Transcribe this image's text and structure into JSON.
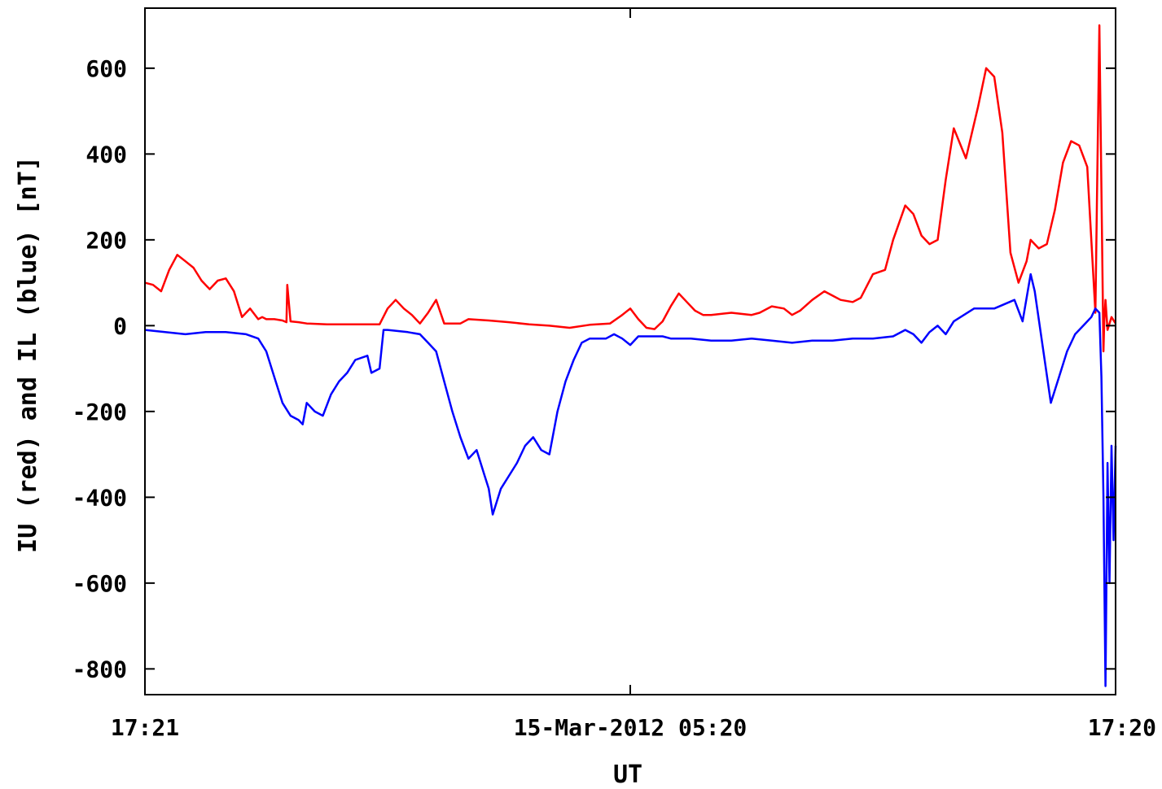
{
  "chart_data": {
    "type": "line",
    "xlabel": "UT",
    "ylabel": "IU (red) and IL (blue) [nT]",
    "x_tick_labels": [
      "17:21",
      "15-Mar-2012 05:20",
      "17:20"
    ],
    "x_range_hours": [
      0,
      24
    ],
    "ylim": [
      -860,
      740
    ],
    "y_ticks": [
      600,
      400,
      200,
      0,
      -200,
      -400,
      -600,
      -800
    ],
    "grid": false,
    "series": [
      {
        "label_word": "red",
        "color": "#ff0000",
        "t": [
          0,
          0.2,
          0.4,
          0.6,
          0.8,
          1.0,
          1.2,
          1.4,
          1.6,
          1.8,
          2.0,
          2.2,
          2.4,
          2.6,
          2.8,
          2.9,
          3.0,
          3.2,
          3.4,
          3.5,
          3.52,
          3.6,
          3.8,
          4.0,
          4.5,
          5.0,
          5.5,
          5.8,
          6.0,
          6.2,
          6.4,
          6.6,
          6.8,
          7.0,
          7.2,
          7.4,
          7.5,
          7.6,
          7.8,
          8.0,
          8.5,
          9.0,
          9.5,
          10.0,
          10.5,
          11.0,
          11.5,
          11.8,
          12.0,
          12.2,
          12.4,
          12.6,
          12.8,
          13.0,
          13.2,
          13.4,
          13.6,
          13.8,
          14.0,
          14.5,
          15.0,
          15.2,
          15.5,
          15.8,
          16.0,
          16.2,
          16.5,
          16.8,
          17.0,
          17.2,
          17.5,
          17.7,
          18.0,
          18.3,
          18.5,
          18.8,
          19.0,
          19.2,
          19.4,
          19.6,
          19.8,
          20.0,
          20.3,
          20.6,
          20.8,
          21.0,
          21.2,
          21.4,
          21.6,
          21.8,
          21.9,
          22.1,
          22.3,
          22.5,
          22.7,
          22.9,
          23.1,
          23.3,
          23.5,
          23.6,
          23.7,
          23.72,
          23.75,
          23.8,
          23.9,
          24.0
        ],
        "values": [
          100,
          95,
          80,
          130,
          165,
          150,
          135,
          105,
          85,
          105,
          110,
          80,
          20,
          40,
          15,
          20,
          15,
          15,
          12,
          8,
          95,
          10,
          8,
          5,
          3,
          3,
          3,
          3,
          40,
          60,
          40,
          25,
          5,
          30,
          60,
          5,
          5,
          5,
          5,
          15,
          12,
          8,
          3,
          0,
          -5,
          2,
          5,
          25,
          40,
          15,
          -5,
          -8,
          10,
          45,
          75,
          55,
          35,
          25,
          25,
          30,
          25,
          30,
          45,
          40,
          25,
          35,
          60,
          80,
          70,
          60,
          55,
          65,
          120,
          130,
          200,
          280,
          260,
          210,
          190,
          200,
          340,
          460,
          390,
          510,
          600,
          580,
          450,
          170,
          100,
          150,
          200,
          180,
          190,
          270,
          380,
          430,
          420,
          370,
          30,
          700,
          -60,
          10,
          60,
          -10,
          20,
          5
        ]
      },
      {
        "label_word": "blue",
        "color": "#0000ff",
        "t": [
          0,
          0.5,
          1.0,
          1.5,
          2.0,
          2.5,
          2.8,
          3.0,
          3.2,
          3.4,
          3.6,
          3.8,
          3.9,
          4.0,
          4.2,
          4.4,
          4.6,
          4.8,
          5.0,
          5.2,
          5.5,
          5.6,
          5.8,
          5.9,
          6.0,
          6.5,
          6.8,
          7.0,
          7.2,
          7.4,
          7.6,
          7.8,
          8.0,
          8.2,
          8.4,
          8.5,
          8.6,
          8.8,
          9.0,
          9.2,
          9.4,
          9.6,
          9.8,
          10.0,
          10.2,
          10.4,
          10.6,
          10.8,
          11.0,
          11.2,
          11.4,
          11.6,
          11.8,
          12.0,
          12.2,
          12.4,
          12.6,
          12.8,
          13.0,
          13.5,
          14.0,
          14.5,
          15.0,
          15.5,
          16.0,
          16.5,
          17.0,
          17.5,
          18.0,
          18.5,
          18.8,
          19.0,
          19.2,
          19.4,
          19.6,
          19.8,
          20.0,
          20.5,
          21.0,
          21.5,
          21.7,
          21.9,
          22.0,
          22.2,
          22.4,
          22.6,
          22.8,
          23.0,
          23.2,
          23.4,
          23.5,
          23.6,
          23.65,
          23.7,
          23.75,
          23.8,
          23.85,
          23.9,
          23.95,
          24.0
        ],
        "values": [
          -10,
          -15,
          -20,
          -15,
          -15,
          -20,
          -30,
          -60,
          -120,
          -180,
          -210,
          -220,
          -230,
          -180,
          -200,
          -210,
          -160,
          -130,
          -110,
          -80,
          -70,
          -110,
          -100,
          -10,
          -10,
          -15,
          -20,
          -40,
          -60,
          -130,
          -200,
          -260,
          -310,
          -290,
          -350,
          -380,
          -440,
          -380,
          -350,
          -320,
          -280,
          -260,
          -290,
          -300,
          -200,
          -130,
          -80,
          -40,
          -30,
          -30,
          -30,
          -20,
          -30,
          -45,
          -25,
          -25,
          -25,
          -25,
          -30,
          -30,
          -35,
          -35,
          -30,
          -35,
          -40,
          -35,
          -35,
          -30,
          -30,
          -25,
          -10,
          -20,
          -40,
          -15,
          0,
          -20,
          10,
          40,
          40,
          60,
          10,
          120,
          80,
          -50,
          -180,
          -120,
          -60,
          -20,
          0,
          20,
          40,
          30,
          -120,
          -400,
          -840,
          -320,
          -600,
          -280,
          -500,
          -280
        ]
      }
    ]
  }
}
